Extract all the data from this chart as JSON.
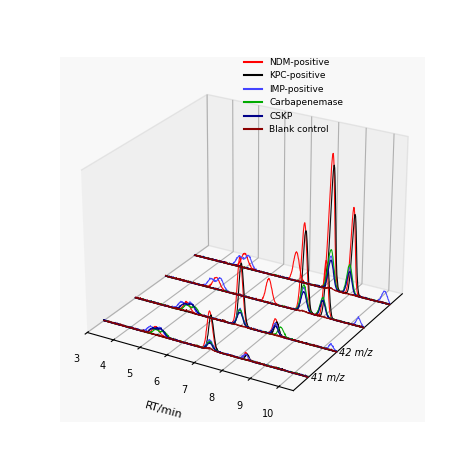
{
  "legend_entries": [
    {
      "label": "NDM-positive",
      "color": "#ff0000",
      "lw": 1.5
    },
    {
      "label": "KPC-positive",
      "color": "#000000",
      "lw": 1.5
    },
    {
      "label": "IMP-positive",
      "color": "#4444ff",
      "lw": 1.5
    },
    {
      "label": "Carbapenemase",
      "color": "#00aa00",
      "lw": 1.5
    },
    {
      "label": "CSKP",
      "color": "#000088",
      "lw": 1.5
    },
    {
      "label": "Blank control",
      "color": "#8b0000",
      "lw": 1.5
    }
  ],
  "xlabel": "RT/min",
  "xticks": [
    3,
    4,
    5,
    6,
    7,
    8,
    9,
    10
  ],
  "xmin": 3.0,
  "xmax": 10.5,
  "mz_labels": [
    "41 m/z",
    "42 m/z",
    "",
    ""
  ],
  "background_color": "#ffffff"
}
